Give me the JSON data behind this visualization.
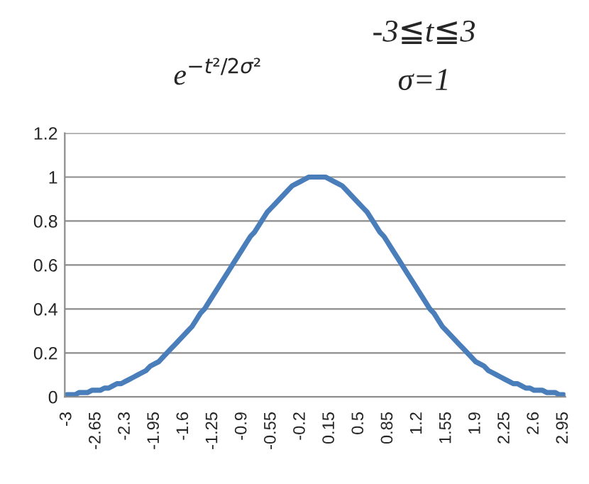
{
  "chart_data": {
    "type": "line",
    "categories": [
      "-3",
      null,
      null,
      null,
      null,
      null,
      null,
      "-2.65",
      null,
      null,
      null,
      null,
      null,
      null,
      "-2.3",
      null,
      null,
      null,
      null,
      null,
      null,
      "-1.95",
      null,
      null,
      null,
      null,
      null,
      null,
      "-1.6",
      null,
      null,
      null,
      null,
      null,
      null,
      "-1.25",
      null,
      null,
      null,
      null,
      null,
      null,
      "-0.9",
      null,
      null,
      null,
      null,
      null,
      null,
      "-0.55",
      null,
      null,
      null,
      null,
      null,
      null,
      "-0.2",
      null,
      null,
      null,
      null,
      null,
      null,
      "0.15",
      null,
      null,
      null,
      null,
      null,
      null,
      "0.5",
      null,
      null,
      null,
      null,
      null,
      null,
      "0.85",
      null,
      null,
      null,
      null,
      null,
      null,
      "1.2",
      null,
      null,
      null,
      null,
      null,
      null,
      "1.55",
      null,
      null,
      null,
      null,
      null,
      null,
      "1.9",
      null,
      null,
      null,
      null,
      null,
      null,
      "2.25",
      null,
      null,
      null,
      null,
      null,
      null,
      "2.6",
      null,
      null,
      null,
      null,
      null,
      null,
      "2.95"
    ],
    "series": [
      {
        "color": "#4a7ebb",
        "values": [
          0.01,
          0.01,
          0.01,
          0.02,
          0.02,
          0.02,
          0.03,
          0.03,
          0.03,
          0.04,
          0.04,
          0.05,
          0.06,
          0.06,
          0.07,
          0.08,
          0.09,
          0.1,
          0.11,
          0.12,
          0.14,
          0.15,
          0.16,
          0.18,
          0.2,
          0.22,
          0.24,
          0.26,
          0.28,
          0.3,
          0.32,
          0.35,
          0.38,
          0.4,
          0.43,
          0.46,
          0.49,
          0.52,
          0.55,
          0.58,
          0.61,
          0.64,
          0.67,
          0.7,
          0.73,
          0.75,
          0.78,
          0.81,
          0.84,
          0.86,
          0.88,
          0.9,
          0.92,
          0.94,
          0.96,
          0.97,
          0.98,
          0.99,
          1.0,
          1.0,
          1.0,
          1.0,
          1.0,
          0.99,
          0.98,
          0.97,
          0.96,
          0.94,
          0.92,
          0.9,
          0.88,
          0.86,
          0.84,
          0.81,
          0.78,
          0.75,
          0.73,
          0.7,
          0.67,
          0.64,
          0.61,
          0.58,
          0.55,
          0.52,
          0.49,
          0.46,
          0.43,
          0.4,
          0.38,
          0.35,
          0.32,
          0.3,
          0.28,
          0.26,
          0.24,
          0.22,
          0.2,
          0.18,
          0.16,
          0.15,
          0.14,
          0.12,
          0.11,
          0.1,
          0.09,
          0.08,
          0.07,
          0.06,
          0.06,
          0.05,
          0.04,
          0.04,
          0.03,
          0.03,
          0.03,
          0.02,
          0.02,
          0.02,
          0.01,
          0.01
        ]
      }
    ],
    "ylim": [
      0,
      1.2
    ],
    "yticks": [
      0,
      0.2,
      0.4,
      0.6,
      0.8,
      1,
      1.2
    ],
    "grid": "y",
    "legend": false,
    "annotations": [
      "e$^{−t²/2σ²}$",
      "-3≦t≦3",
      "σ=1"
    ]
  }
}
